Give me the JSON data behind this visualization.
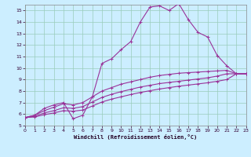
{
  "bg_color": "#cceeff",
  "line_color": "#993399",
  "grid_color": "#99ccbb",
  "xlabel": "Windchill (Refroidissement éolien,°C)",
  "xlim": [
    0,
    23
  ],
  "ylim": [
    5,
    15.5
  ],
  "xticks": [
    0,
    1,
    2,
    3,
    4,
    5,
    6,
    7,
    8,
    9,
    10,
    11,
    12,
    13,
    14,
    15,
    16,
    17,
    18,
    19,
    20,
    21,
    22,
    23
  ],
  "yticks": [
    5,
    6,
    7,
    8,
    9,
    10,
    11,
    12,
    13,
    14,
    15
  ],
  "main_x": [
    0,
    1,
    2,
    3,
    4,
    5,
    6,
    7,
    8,
    9,
    10,
    11,
    12,
    13,
    14,
    15,
    16,
    17,
    18,
    19,
    20,
    21,
    22,
    23
  ],
  "main_y": [
    5.7,
    5.9,
    6.5,
    6.8,
    7.0,
    5.6,
    5.9,
    7.5,
    10.4,
    10.8,
    11.6,
    12.3,
    14.0,
    15.3,
    15.4,
    15.0,
    15.6,
    14.2,
    13.1,
    12.7,
    11.1,
    10.2,
    9.5,
    9.5
  ],
  "line_a_x": [
    0,
    1,
    2,
    3,
    4,
    5,
    6,
    7,
    8,
    9,
    10,
    11,
    12,
    13,
    14,
    15,
    16,
    17,
    18,
    19,
    20,
    21,
    22,
    23
  ],
  "line_a_y": [
    5.7,
    5.9,
    6.3,
    6.6,
    6.9,
    6.8,
    7.0,
    7.5,
    8.0,
    8.3,
    8.6,
    8.8,
    9.0,
    9.2,
    9.35,
    9.45,
    9.55,
    9.6,
    9.65,
    9.7,
    9.75,
    9.8,
    9.5,
    9.5
  ],
  "line_b_x": [
    0,
    1,
    2,
    3,
    4,
    5,
    6,
    7,
    8,
    9,
    10,
    11,
    12,
    13,
    14,
    15,
    16,
    17,
    18,
    19,
    20,
    21,
    22,
    23
  ],
  "line_b_y": [
    5.7,
    5.8,
    6.1,
    6.3,
    6.55,
    6.5,
    6.65,
    7.05,
    7.45,
    7.72,
    7.95,
    8.15,
    8.35,
    8.5,
    8.65,
    8.75,
    8.85,
    8.95,
    9.05,
    9.15,
    9.3,
    9.5,
    9.5,
    9.5
  ],
  "line_c_x": [
    0,
    1,
    2,
    3,
    4,
    5,
    6,
    7,
    8,
    9,
    10,
    11,
    12,
    13,
    14,
    15,
    16,
    17,
    18,
    19,
    20,
    21,
    22,
    23
  ],
  "line_c_y": [
    5.7,
    5.75,
    5.95,
    6.1,
    6.3,
    6.25,
    6.35,
    6.7,
    7.05,
    7.3,
    7.5,
    7.7,
    7.88,
    8.03,
    8.18,
    8.3,
    8.42,
    8.52,
    8.62,
    8.72,
    8.85,
    9.0,
    9.5,
    9.5
  ]
}
